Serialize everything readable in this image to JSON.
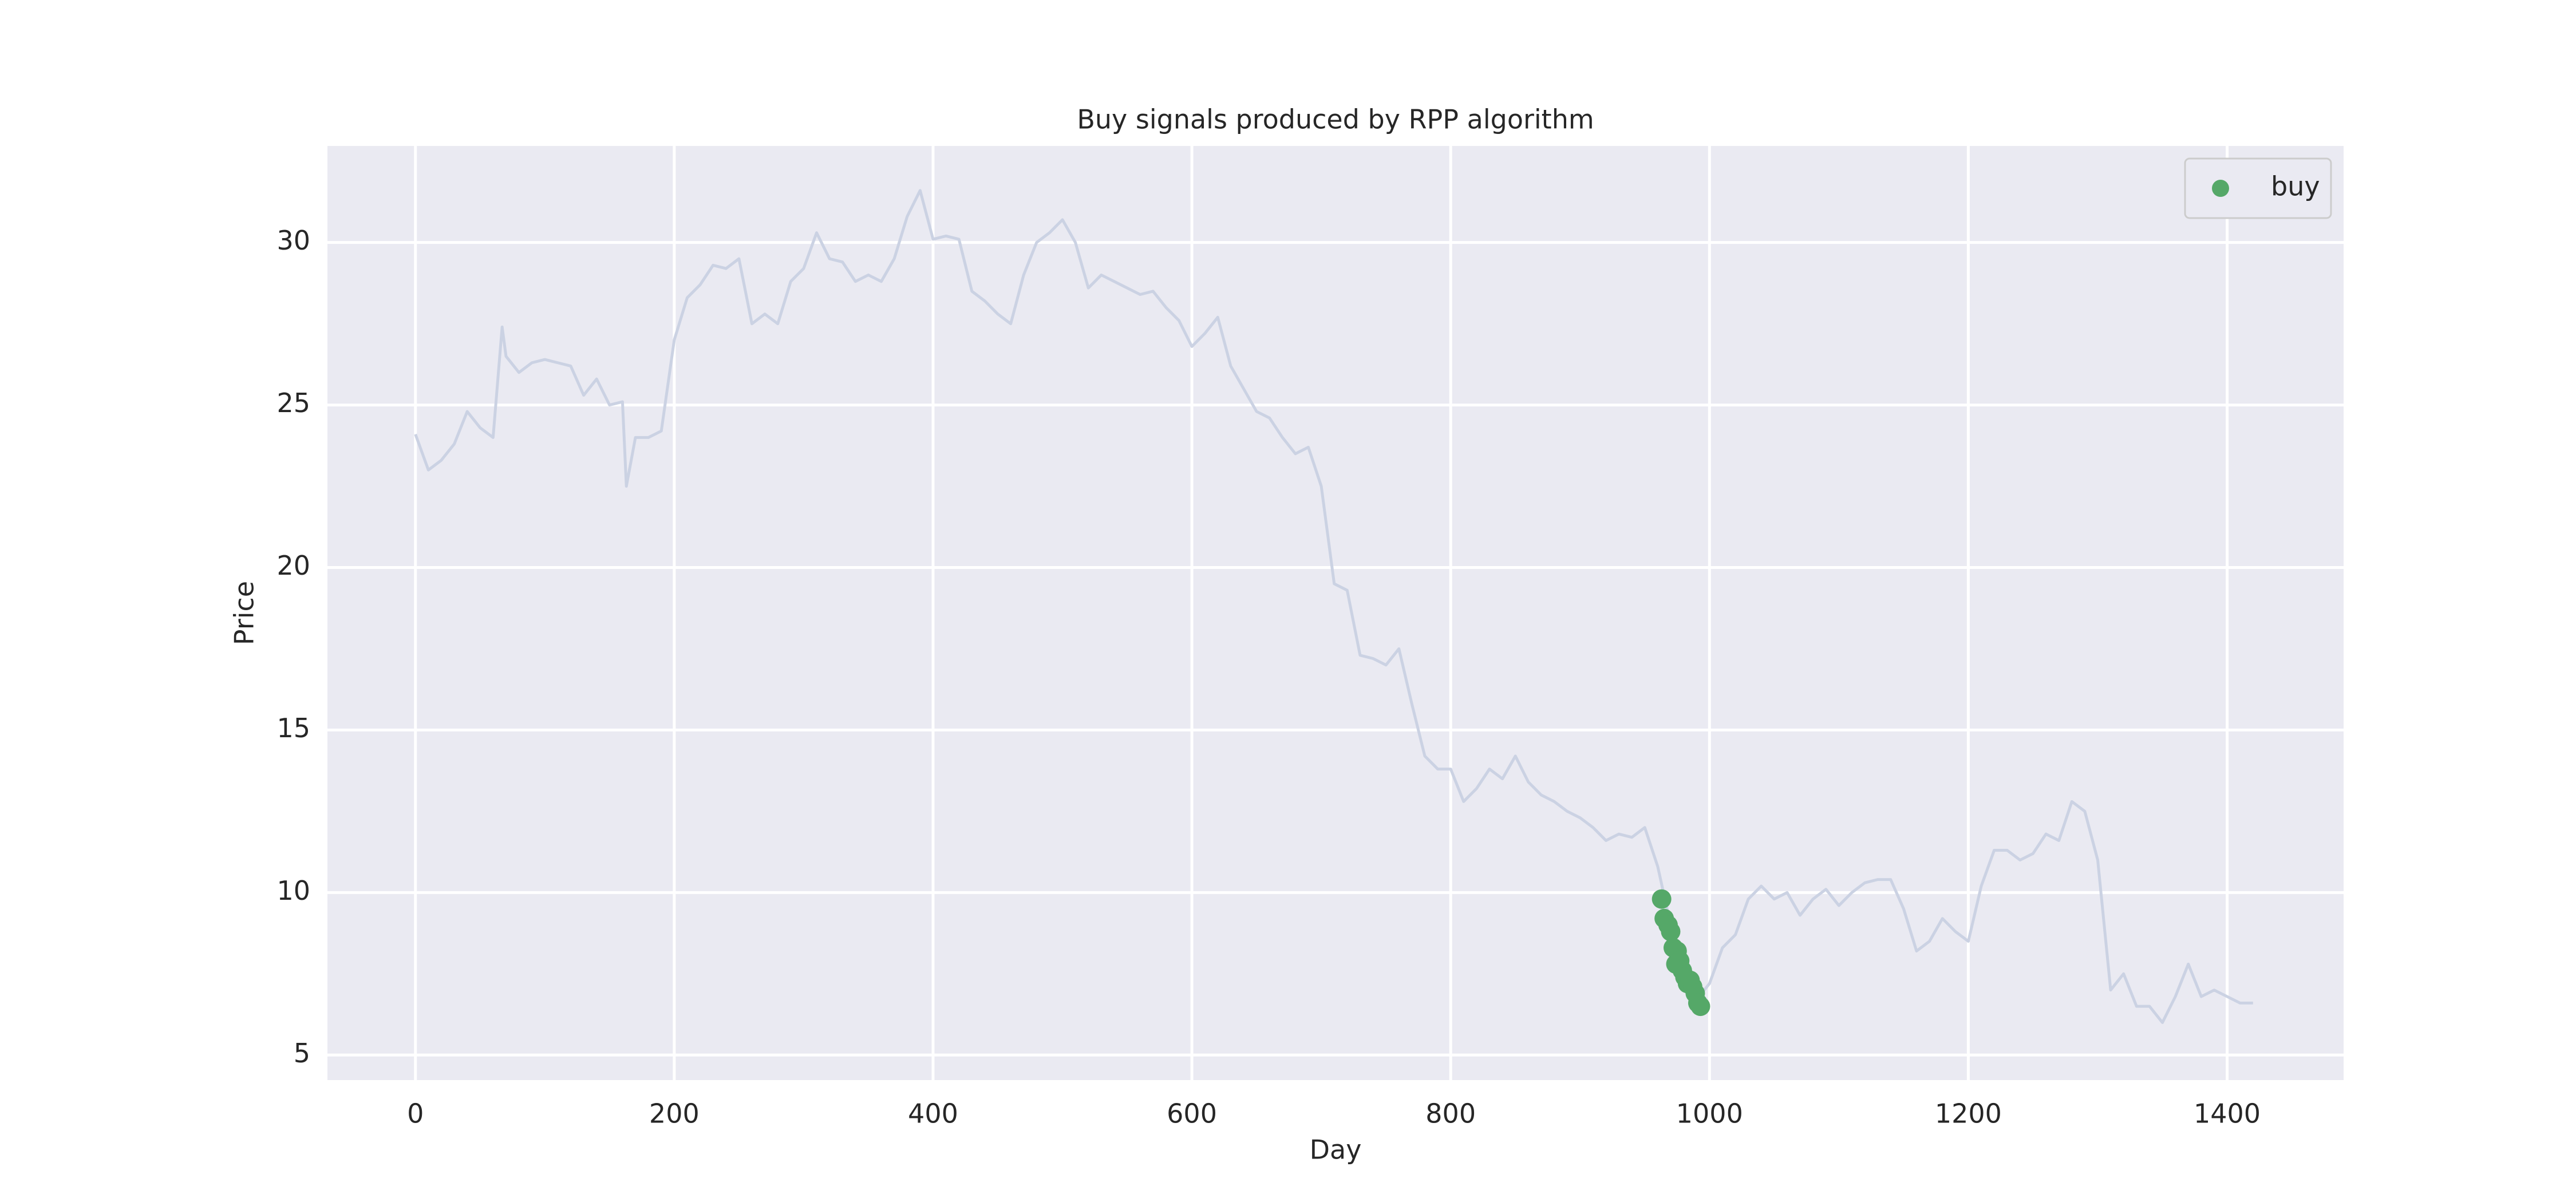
{
  "chart_data": {
    "type": "line",
    "title": "Buy signals produced by RPP algorithm",
    "xlabel": "Day",
    "ylabel": "Price",
    "xlim": [
      -68,
      1490
    ],
    "ylim": [
      4.23,
      32.97
    ],
    "xticks": [
      0,
      200,
      400,
      600,
      800,
      1000,
      1200,
      1400
    ],
    "yticks": [
      5,
      10,
      15,
      20,
      25,
      30
    ],
    "grid": true,
    "legend": "upper right",
    "series": [
      {
        "color": "#cbd2e3",
        "x": [
          0,
          10,
          20,
          30,
          40,
          50,
          60,
          67,
          70,
          80,
          90,
          100,
          110,
          120,
          130,
          140,
          150,
          160,
          163,
          170,
          180,
          190,
          200,
          210,
          220,
          230,
          240,
          250,
          260,
          270,
          280,
          290,
          300,
          310,
          320,
          330,
          340,
          350,
          360,
          370,
          380,
          390,
          400,
          410,
          420,
          430,
          440,
          450,
          460,
          470,
          480,
          490,
          500,
          510,
          520,
          530,
          540,
          550,
          560,
          570,
          580,
          590,
          600,
          610,
          620,
          630,
          640,
          650,
          660,
          670,
          680,
          690,
          700,
          710,
          720,
          730,
          740,
          750,
          760,
          770,
          780,
          790,
          800,
          810,
          820,
          830,
          840,
          850,
          860,
          870,
          880,
          890,
          900,
          910,
          920,
          930,
          940,
          950,
          960,
          970,
          980,
          990,
          1000,
          1010,
          1020,
          1030,
          1040,
          1050,
          1060,
          1070,
          1080,
          1090,
          1100,
          1110,
          1120,
          1130,
          1140,
          1150,
          1160,
          1170,
          1180,
          1190,
          1200,
          1210,
          1220,
          1230,
          1240,
          1250,
          1260,
          1270,
          1280,
          1290,
          1300,
          1310,
          1320,
          1330,
          1340,
          1350,
          1360,
          1370,
          1380,
          1390,
          1400,
          1410,
          1420
        ],
        "values": [
          24.1,
          23.0,
          23.3,
          23.8,
          24.8,
          24.3,
          24.0,
          27.4,
          26.5,
          26.0,
          26.3,
          26.4,
          26.3,
          26.2,
          25.3,
          25.8,
          25.0,
          25.1,
          22.5,
          24.0,
          24.0,
          24.2,
          27.0,
          28.3,
          28.7,
          29.3,
          29.2,
          29.5,
          27.5,
          27.8,
          27.5,
          28.8,
          29.2,
          30.3,
          29.5,
          29.4,
          28.8,
          29.0,
          28.8,
          29.5,
          30.8,
          31.6,
          30.1,
          30.2,
          30.1,
          28.5,
          28.2,
          27.8,
          27.5,
          29.0,
          30.0,
          30.3,
          30.7,
          30.0,
          28.6,
          29.0,
          28.8,
          28.6,
          28.4,
          28.5,
          28.0,
          27.6,
          26.8,
          27.2,
          27.7,
          26.2,
          25.5,
          24.8,
          24.6,
          24.0,
          23.5,
          23.7,
          22.5,
          19.5,
          19.3,
          17.3,
          17.2,
          17.0,
          17.5,
          15.8,
          14.2,
          13.8,
          13.8,
          12.8,
          13.2,
          13.8,
          13.5,
          14.2,
          13.4,
          13.0,
          12.8,
          12.5,
          12.3,
          12.0,
          11.6,
          11.8,
          11.7,
          12.0,
          10.8,
          9.0,
          7.5,
          6.7,
          7.2,
          8.3,
          8.7,
          9.8,
          10.2,
          9.8,
          10.0,
          9.3,
          9.8,
          10.1,
          9.6,
          10.0,
          10.3,
          10.4,
          10.4,
          9.5,
          8.2,
          8.5,
          9.2,
          8.8,
          8.5,
          10.2,
          11.3,
          11.3,
          11.0,
          11.2,
          11.8,
          11.6,
          12.8,
          12.5,
          11.0,
          7.0,
          7.5,
          6.5,
          6.5,
          6.0,
          6.8,
          7.8,
          6.8,
          7.0,
          6.8,
          6.6,
          6.6
        ]
      },
      {
        "name": "buy",
        "type": "scatter",
        "color": "#55a868",
        "x": [
          963,
          965,
          968,
          970,
          972,
          974,
          975,
          977,
          979,
          981,
          983,
          985,
          987,
          989,
          991,
          993
        ],
        "values": [
          9.8,
          9.2,
          9.0,
          8.8,
          8.3,
          7.8,
          8.2,
          7.9,
          7.6,
          7.4,
          7.2,
          7.3,
          7.1,
          6.9,
          6.6,
          6.5
        ]
      }
    ]
  }
}
